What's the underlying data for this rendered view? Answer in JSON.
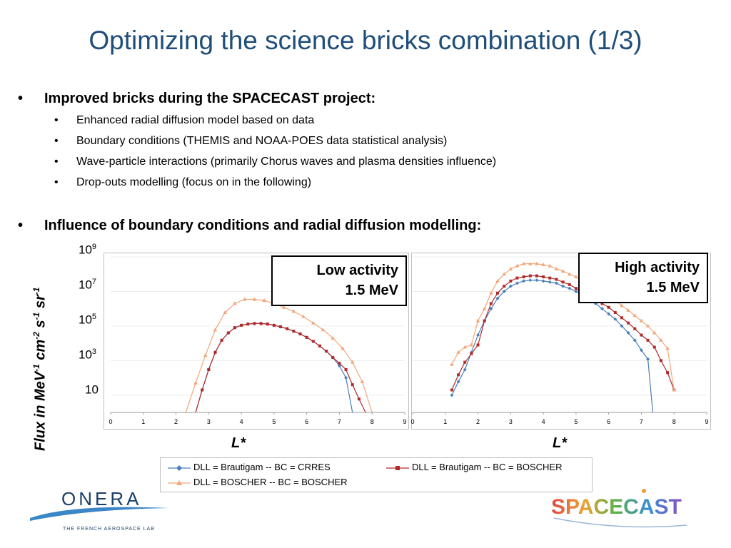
{
  "slide": {
    "title": "Optimizing the science bricks combination (1/3)",
    "bullet1": "Improved bricks during the SPACECAST project:",
    "sub_bullets": [
      "Enhanced radial diffusion model based on data",
      "Boundary conditions (THEMIS and NOAA-POES data statistical analysis)",
      "Wave-particle interactions (primarily Chorus waves and plasma densities influence)",
      "Drop-outs modelling (focus on in the following)"
    ],
    "bullet2": "Influence of boundary conditions and radial diffusion modelling:",
    "bullet_symbol": "•"
  },
  "figure": {
    "ylabel_parts": [
      "Flux in MeV",
      "-1",
      " cm",
      "-2",
      " s",
      "-1",
      " sr",
      "-1"
    ],
    "yticks": [
      {
        "base": "10",
        "exp": "9"
      },
      {
        "base": "10",
        "exp": "7"
      },
      {
        "base": "10",
        "exp": "5"
      },
      {
        "base": "10",
        "exp": "3"
      },
      {
        "base": "10",
        "exp": ""
      }
    ],
    "xlabel": "L*",
    "low_box": {
      "line1": "Low activity",
      "line2": "1.5 MeV"
    },
    "high_box": {
      "line1": "High activity",
      "line2": "1.5 MeV"
    },
    "legend": [
      "DLL = Brautigam -- BC = CRRES",
      "DLL = Brautigam -- BC = BOSCHER",
      "DLL = BOSCHER -- BC = BOSCHER"
    ]
  },
  "logos": {
    "onera": "ONERA",
    "onera_tagline": "THE FRENCH AEROSPACE LAB",
    "spacecast": "SPACECAST"
  },
  "chart_data": [
    {
      "type": "line",
      "title": "Low activity 1.5 MeV",
      "xlabel": "L*",
      "ylabel": "Flux in MeV-1 cm-2 s-1 sr-1",
      "log_y": true,
      "xlim": [
        0,
        9
      ],
      "ylim": [
        1,
        1000000000
      ],
      "x_ticks": [
        "0",
        "1",
        "2",
        "3",
        "4",
        "5",
        "6",
        "7",
        "8",
        "9"
      ],
      "legend": "bottom",
      "colors": [
        "#4a7ebb",
        "#b22a2a",
        "#f2a77a"
      ],
      "series": [
        {
          "name": "DLL = Brautigam -- BC = CRRES",
          "x": [
            2.6,
            2.8,
            3.0,
            3.2,
            3.4,
            3.6,
            3.8,
            4.0,
            4.2,
            4.4,
            4.6,
            4.8,
            5.0,
            5.2,
            5.4,
            5.6,
            5.8,
            6.0,
            6.2,
            6.4,
            6.6,
            6.8,
            7.0,
            7.2,
            7.4
          ],
          "y": [
            1,
            20,
            300,
            3000,
            15000,
            40000,
            80000,
            110000,
            130000,
            140000,
            140000,
            130000,
            110000,
            90000,
            70000,
            50000,
            35000,
            22000,
            13000,
            7000,
            3500,
            1500,
            500,
            100,
            1
          ]
        },
        {
          "name": "DLL = Brautigam -- BC = BOSCHER",
          "x": [
            2.6,
            2.8,
            3.0,
            3.2,
            3.4,
            3.6,
            3.8,
            4.0,
            4.2,
            4.4,
            4.6,
            4.8,
            5.0,
            5.2,
            5.4,
            5.6,
            5.8,
            6.0,
            6.2,
            6.4,
            6.6,
            6.8,
            7.0,
            7.2,
            7.4,
            7.6,
            7.8
          ],
          "y": [
            1,
            20,
            300,
            3000,
            15000,
            40000,
            80000,
            110000,
            130000,
            140000,
            140000,
            130000,
            110000,
            90000,
            70000,
            50000,
            35000,
            22000,
            13000,
            7000,
            3500,
            1500,
            700,
            300,
            40,
            6,
            1
          ]
        },
        {
          "name": "DLL = BOSCHER -- BC = BOSCHER",
          "x": [
            2.3,
            2.6,
            2.9,
            3.2,
            3.5,
            3.8,
            4.1,
            4.4,
            4.7,
            5.0,
            5.3,
            5.6,
            5.9,
            6.2,
            6.5,
            6.8,
            7.1,
            7.4,
            7.7,
            8.0
          ],
          "y": [
            1,
            50,
            2000,
            60000,
            600000,
            2000000,
            3500000,
            3500000,
            3000000,
            2000000,
            1200000,
            700000,
            350000,
            150000,
            60000,
            20000,
            5000,
            800,
            60,
            1
          ]
        }
      ]
    },
    {
      "type": "line",
      "title": "High activity 1.5 MeV",
      "xlabel": "L*",
      "ylabel": "Flux in MeV-1 cm-2 s-1 sr-1",
      "log_y": true,
      "xlim": [
        0,
        9
      ],
      "ylim": [
        1,
        1000000000
      ],
      "x_ticks": [
        "0",
        "1",
        "2",
        "3",
        "4",
        "5",
        "6",
        "7",
        "8",
        "9"
      ],
      "legend": "bottom",
      "colors": [
        "#4a7ebb",
        "#b22a2a",
        "#f2a77a"
      ],
      "series": [
        {
          "name": "DLL = Brautigam -- BC = CRRES",
          "x": [
            1.2,
            1.4,
            1.6,
            1.8,
            2.0,
            2.2,
            2.4,
            2.6,
            2.8,
            3.0,
            3.2,
            3.4,
            3.6,
            3.8,
            4.0,
            4.2,
            4.4,
            4.6,
            4.8,
            5.0,
            5.2,
            5.4,
            5.6,
            5.8,
            6.0,
            6.2,
            6.4,
            6.6,
            6.8,
            7.0,
            7.2,
            7.35
          ],
          "y": [
            10,
            60,
            300,
            3000,
            30000,
            200000,
            1000000,
            4000000,
            10000000,
            20000000,
            30000000,
            40000000,
            45000000,
            45000000,
            40000000,
            35000000,
            30000000,
            20000000,
            15000000,
            10000000,
            6000000,
            3500000,
            2000000,
            1000000,
            500000,
            250000,
            100000,
            40000,
            15000,
            4000,
            1200,
            1
          ]
        },
        {
          "name": "DLL = Brautigam -- BC = BOSCHER",
          "x": [
            1.2,
            1.4,
            1.6,
            1.8,
            2.0,
            2.2,
            2.4,
            2.6,
            2.8,
            3.0,
            3.2,
            3.4,
            3.6,
            3.8,
            4.0,
            4.2,
            4.4,
            4.6,
            4.8,
            5.0,
            5.2,
            5.4,
            5.6,
            5.8,
            6.0,
            6.2,
            6.4,
            6.6,
            6.8,
            7.0,
            7.2,
            7.4,
            7.6,
            7.8,
            8.0
          ],
          "y": [
            20,
            150,
            800,
            2500,
            8000,
            200000,
            2000000,
            8000000,
            20000000,
            40000000,
            60000000,
            70000000,
            80000000,
            80000000,
            70000000,
            60000000,
            50000000,
            35000000,
            25000000,
            15000000,
            9000000,
            6000000,
            3500000,
            2000000,
            1200000,
            600000,
            300000,
            150000,
            70000,
            30000,
            15000,
            6000,
            1000,
            200,
            20
          ]
        },
        {
          "name": "DLL = BOSCHER -- BC = BOSCHER",
          "x": [
            1.2,
            1.4,
            1.6,
            1.8,
            2.0,
            2.2,
            2.4,
            2.6,
            2.8,
            3.0,
            3.2,
            3.4,
            3.6,
            3.8,
            4.0,
            4.2,
            4.4,
            4.6,
            4.8,
            5.0,
            5.2,
            5.4,
            5.6,
            5.8,
            6.0,
            6.2,
            6.4,
            6.6,
            6.8,
            7.0,
            7.2,
            7.4,
            7.6,
            7.8,
            8.0
          ],
          "y": [
            600,
            3000,
            6000,
            8000,
            200000,
            1000000,
            8000000,
            40000000,
            100000000,
            200000000,
            300000000,
            400000000,
            400000000,
            400000000,
            350000000,
            300000000,
            200000000,
            150000000,
            100000000,
            70000000,
            40000000,
            25000000,
            15000000,
            9000000,
            5000000,
            3000000,
            1500000,
            800000,
            400000,
            200000,
            100000,
            40000,
            15000,
            5000,
            20
          ]
        }
      ]
    }
  ]
}
